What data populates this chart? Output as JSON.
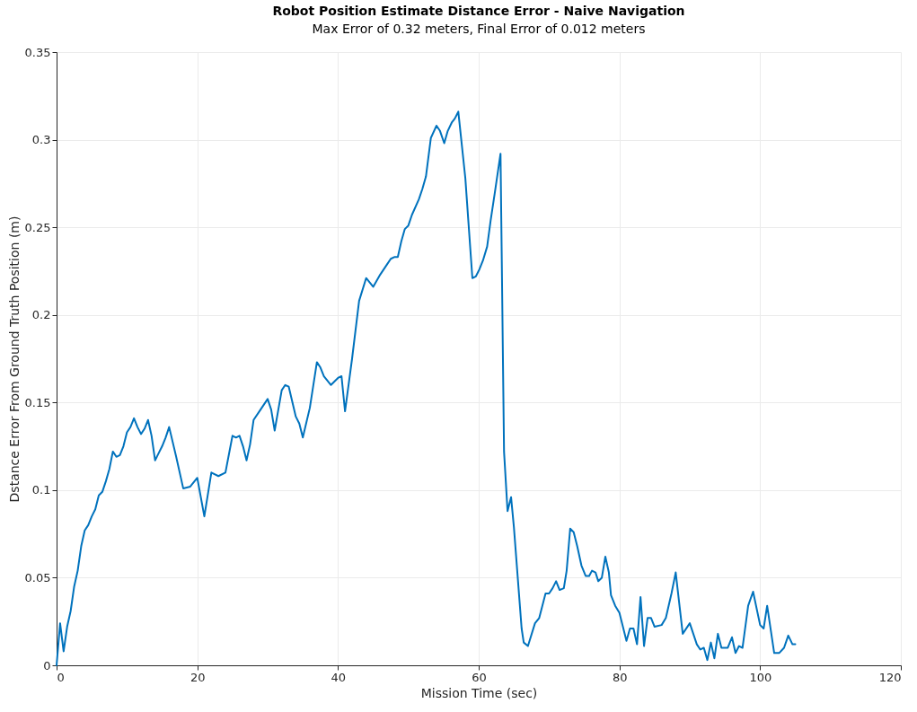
{
  "chart_data": {
    "type": "line",
    "title": "Robot Position Estimate Distance Error - Naive Navigation",
    "subtitle": "Max Error of 0.32 meters, Final Error of 0.012 meters",
    "xlabel": "Mission Time (sec)",
    "ylabel": "Dstance Error From Ground Truth Position (m)",
    "x": [
      0,
      0.5,
      1,
      1.5,
      2,
      2.5,
      3,
      3.5,
      4,
      4.5,
      5,
      5.5,
      6,
      6.5,
      7,
      7.5,
      8,
      8.5,
      9,
      9.5,
      10,
      10.5,
      11,
      11.5,
      12,
      12.5,
      13,
      13.5,
      14,
      14.5,
      15,
      15.5,
      16,
      17,
      18,
      19,
      20,
      21,
      22,
      23,
      24,
      25,
      25.5,
      26,
      26.5,
      27,
      27.5,
      28,
      29,
      30,
      30.5,
      31,
      32,
      32.5,
      33,
      34,
      34.5,
      35,
      36,
      37,
      37.5,
      38,
      39,
      40,
      40.5,
      41,
      42,
      43,
      44,
      45,
      46,
      47,
      47.5,
      48,
      48.5,
      49,
      49.5,
      50,
      50.5,
      51.5,
      52,
      52.5,
      53.2,
      54,
      54.5,
      55.1,
      55.6,
      56.2,
      56.6,
      57.1,
      58.1,
      59.1,
      59.6,
      60.1,
      60.6,
      61.2,
      61.7,
      62.3,
      63.1,
      63.6,
      64.1,
      64.6,
      65,
      66.1,
      66.4,
      67,
      68,
      68.6,
      69.5,
      70,
      70.5,
      71,
      71.5,
      72.1,
      72.5,
      73,
      73.5,
      74,
      74.6,
      75.2,
      75.7,
      76.1,
      76.6,
      77,
      77.5,
      78,
      78.5,
      78.8,
      79.4,
      80,
      81,
      81.5,
      82,
      82.5,
      83,
      83.5,
      84,
      84.5,
      85,
      86,
      86.6,
      87.4,
      88,
      89,
      90,
      91,
      91.5,
      92,
      92.5,
      93,
      93.5,
      94,
      94.5,
      95.4,
      96,
      96.5,
      97,
      97.5,
      98.3,
      99,
      100,
      100.5,
      101,
      102,
      102.7,
      103.4,
      104,
      104.6,
      105
    ],
    "series": [
      {
        "color": "#0072bd",
        "values": [
          0,
          0.024,
          0.008,
          0.022,
          0.031,
          0.045,
          0.054,
          0.068,
          0.077,
          0.08,
          0.085,
          0.089,
          0.097,
          0.099,
          0.105,
          0.112,
          0.122,
          0.119,
          0.12,
          0.125,
          0.133,
          0.136,
          0.141,
          0.136,
          0.132,
          0.135,
          0.14,
          0.131,
          0.117,
          0.121,
          0.125,
          0.13,
          0.136,
          0.119,
          0.101,
          0.102,
          0.107,
          0.085,
          0.11,
          0.108,
          0.11,
          0.131,
          0.13,
          0.131,
          0.125,
          0.117,
          0.126,
          0.14,
          0.146,
          0.152,
          0.146,
          0.134,
          0.157,
          0.16,
          0.159,
          0.142,
          0.138,
          0.13,
          0.147,
          0.173,
          0.17,
          0.165,
          0.16,
          0.164,
          0.165,
          0.145,
          0.175,
          0.208,
          0.221,
          0.216,
          0.223,
          0.229,
          0.232,
          0.233,
          0.233,
          0.242,
          0.249,
          0.251,
          0.257,
          0.266,
          0.272,
          0.279,
          0.301,
          0.308,
          0.305,
          0.298,
          0.305,
          0.31,
          0.312,
          0.316,
          0.278,
          0.221,
          0.222,
          0.226,
          0.231,
          0.239,
          0.254,
          0.27,
          0.292,
          0.122,
          0.088,
          0.096,
          0.079,
          0.021,
          0.013,
          0.011,
          0.024,
          0.027,
          0.041,
          0.041,
          0.044,
          0.048,
          0.043,
          0.044,
          0.054,
          0.078,
          0.076,
          0.068,
          0.057,
          0.051,
          0.051,
          0.054,
          0.053,
          0.048,
          0.05,
          0.062,
          0.053,
          0.04,
          0.034,
          0.03,
          0.014,
          0.021,
          0.021,
          0.012,
          0.039,
          0.011,
          0.027,
          0.027,
          0.022,
          0.023,
          0.027,
          0.041,
          0.053,
          0.018,
          0.024,
          0.012,
          0.009,
          0.01,
          0.003,
          0.013,
          0.004,
          0.018,
          0.01,
          0.01,
          0.016,
          0.007,
          0.011,
          0.01,
          0.034,
          0.042,
          0.023,
          0.021,
          0.034,
          0.007,
          0.007,
          0.01,
          0.017,
          0.012,
          0.012
        ]
      }
    ],
    "xlim": [
      0,
      120
    ],
    "xticks": [
      0,
      20,
      40,
      60,
      80,
      100,
      120
    ],
    "ylim": [
      0,
      0.35
    ],
    "yticks": [
      0,
      0.05,
      0.1,
      0.15,
      0.2,
      0.25,
      0.3,
      0.35
    ],
    "grid": true,
    "line_style": "solid"
  }
}
